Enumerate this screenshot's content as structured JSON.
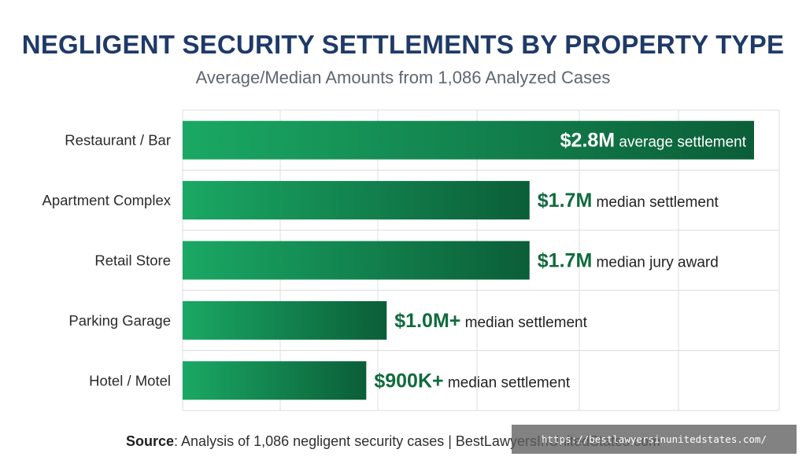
{
  "header": {
    "title": "NEGLIGENT SECURITY SETTLEMENTS BY PROPERTY TYPE",
    "subtitle": "Average/Median Amounts from 1,086 Analyzed Cases"
  },
  "chart_data": {
    "type": "bar",
    "orientation": "horizontal",
    "categories": [
      "Restaurant / Bar",
      "Apartment Complex",
      "Retail Store",
      "Parking Garage",
      "Hotel / Motel"
    ],
    "values": [
      2.8,
      1.7,
      1.7,
      1.0,
      0.9
    ],
    "value_labels": [
      "$2.8M",
      "$1.7M",
      "$1.7M",
      "$1.0M+",
      "$900K+"
    ],
    "label_notes": [
      "average settlement",
      "median settlement",
      "median jury award",
      "median settlement",
      "median settlement"
    ],
    "title": "NEGLIGENT SECURITY SETTLEMENTS BY PROPERTY TYPE",
    "subtitle": "Average/Median Amounts from 1,086 Analyzed Cases",
    "xlabel": "",
    "ylabel": "",
    "xlim": [
      0,
      2.9
    ],
    "grid": true,
    "legend": "none",
    "colors": {
      "bar_start": "#1aa864",
      "bar_end": "#0b5e38",
      "label": "#106b3e",
      "grid": "#dcdcdc"
    }
  },
  "footer": {
    "source_label": "Source",
    "source_text": ": Analysis of 1,086 negligent security cases | BestLawyersInUnitedStates.com"
  },
  "overlay": {
    "url": "https://bestlawyersinunitedstates.com/"
  }
}
